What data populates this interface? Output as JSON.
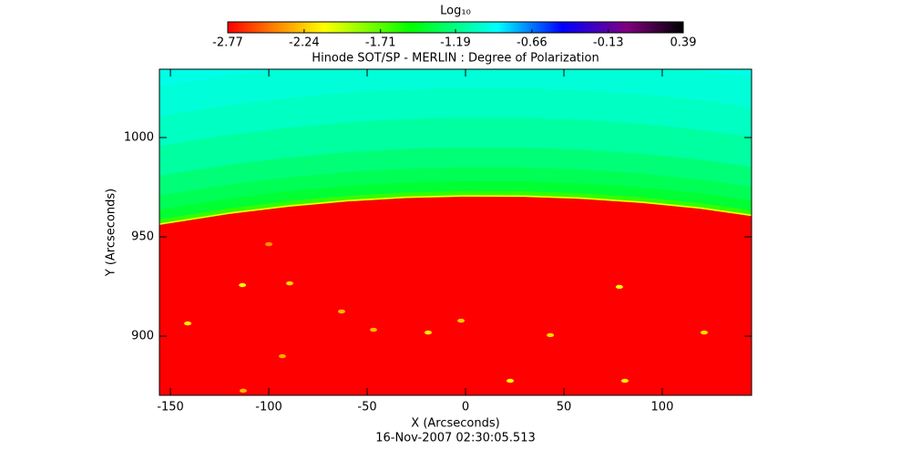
{
  "chart_data": {
    "type": "heatmap",
    "title": "Hinode SOT/SP - MERLIN : Degree of Polarization",
    "xlabel": "X (Arcseconds)",
    "ylabel": "Y (Arcseconds)",
    "date": "16-Nov-2007 02:30:05.513",
    "xlim": [
      -155.6,
      145.4
    ],
    "ylim": [
      870.2,
      1034.4
    ],
    "xticks": [
      -150,
      -100,
      -50,
      0,
      50,
      100
    ],
    "yticks": [
      900,
      950,
      1000
    ],
    "colorbar": {
      "label": "Log₁₀",
      "lim": [
        -2.77,
        0.39
      ],
      "ticks": [
        -2.77,
        -2.24,
        -1.71,
        -1.19,
        -0.66,
        -0.13,
        0.39
      ],
      "colormap": [
        {
          "value": -2.77,
          "color": "#ff0000"
        },
        {
          "value": -2.45,
          "color": "#ff8000"
        },
        {
          "value": -2.1,
          "color": "#ffff00"
        },
        {
          "value": -1.5,
          "color": "#00ff00"
        },
        {
          "value": -0.9,
          "color": "#00ffff"
        },
        {
          "value": -0.45,
          "color": "#0000ff"
        },
        {
          "value": 0.0,
          "color": "#800080"
        },
        {
          "value": 0.39,
          "color": "#000000"
        }
      ]
    },
    "disk_value": -2.77,
    "limb_value": -2.1,
    "limb": {
      "x": [
        -156,
        -120,
        -90,
        -60,
        -30,
        0,
        30,
        60,
        90,
        120,
        146
      ],
      "y": [
        955.9,
        961.5,
        965.1,
        967.8,
        969.5,
        970.2,
        970.1,
        969.0,
        967.0,
        964.0,
        960.3
      ]
    },
    "sky_profile": {
      "height": [
        0,
        3,
        8,
        15,
        25,
        40,
        55,
        70
      ],
      "values": [
        -1.62,
        -1.38,
        -1.3,
        -1.22,
        -1.12,
        -1.04,
        -0.99,
        -0.96
      ]
    },
    "speckles": {
      "x": [
        -141.2,
        -113.4,
        -89.4,
        -63.0,
        -19.0,
        -2.3,
        22.7,
        43.1,
        78.2,
        81.0,
        121.3,
        -113.0,
        -93.1,
        -46.8,
        -100.0
      ],
      "y": [
        906.4,
        925.7,
        926.6,
        912.4,
        901.8,
        907.8,
        877.5,
        900.5,
        924.8,
        877.5,
        901.8,
        872.5,
        889.9,
        903.2,
        946.3
      ],
      "values": [
        -2.15,
        -2.1,
        -2.2,
        -2.3,
        -2.15,
        -2.25,
        -2.1,
        -2.2,
        -2.1,
        -2.15,
        -2.2,
        -2.3,
        -2.35,
        -2.3,
        -2.4
      ]
    }
  }
}
